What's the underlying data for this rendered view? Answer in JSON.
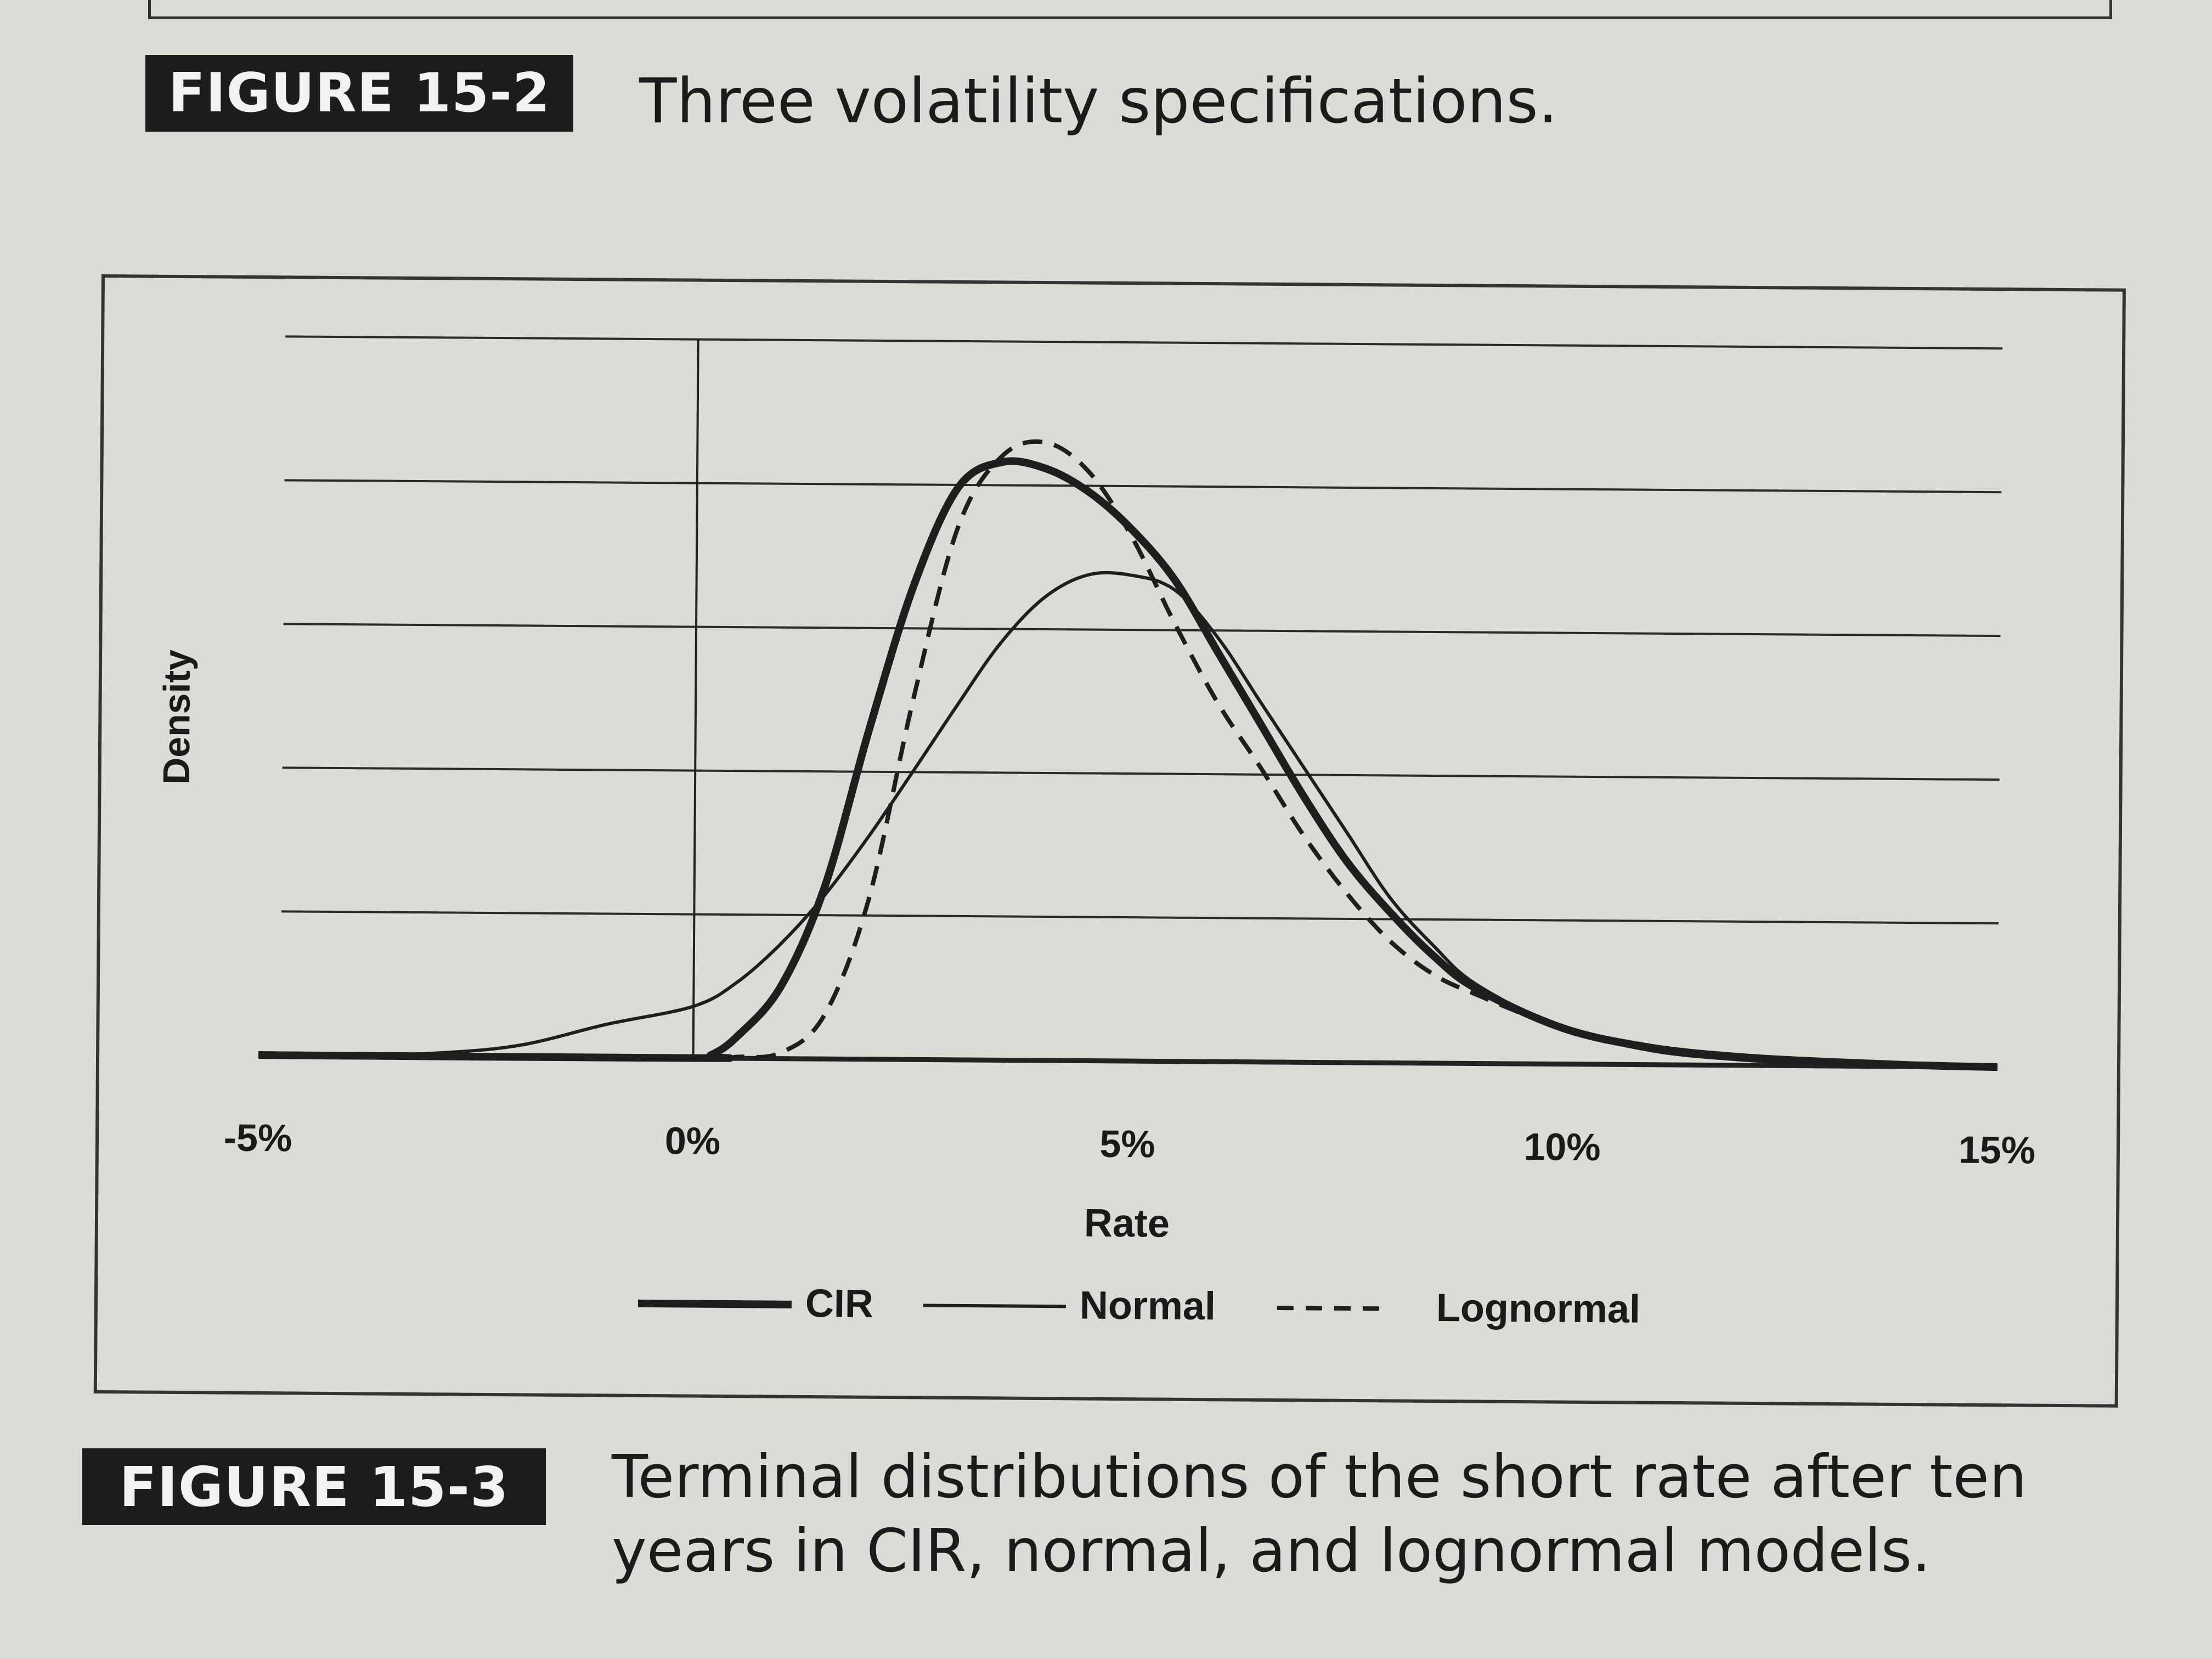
{
  "top_figure": {
    "label": "FIGURE 15-2",
    "caption": "Three volatility specifications."
  },
  "bottom_figure": {
    "label": "FIGURE 15-3",
    "caption_line1": "Terminal distributions of the short rate after ten",
    "caption_line2": "years in CIR, normal, and lognormal models."
  },
  "chart_data": {
    "type": "line",
    "title": "",
    "xlabel": "Rate",
    "ylabel": "Density",
    "xlim": [
      -0.05,
      0.15
    ],
    "ylim": [
      0,
      50
    ],
    "grid": true,
    "x_ticks": [
      "-5%",
      "0%",
      "5%",
      "10%",
      "15%"
    ],
    "x_tick_values": [
      -0.05,
      0.0,
      0.05,
      0.1,
      0.15
    ],
    "legend_position": "bottom",
    "series": [
      {
        "name": "CIR",
        "style": "thick-solid",
        "x": [
          -0.05,
          0.0,
          0.002,
          0.005,
          0.01,
          0.015,
          0.02,
          0.025,
          0.03,
          0.035,
          0.04,
          0.045,
          0.05,
          0.055,
          0.06,
          0.065,
          0.07,
          0.075,
          0.08,
          0.085,
          0.09,
          0.1,
          0.11,
          0.12,
          0.13,
          0.14,
          0.15
        ],
        "values": [
          0,
          0,
          0.2,
          1.5,
          5,
          12,
          23,
          33,
          39.8,
          41.6,
          41.2,
          39.6,
          37,
          33.5,
          28.5,
          23.5,
          18.5,
          14,
          10.5,
          7.5,
          5.2,
          2.5,
          1.2,
          0.6,
          0.3,
          0.1,
          0
        ]
      },
      {
        "name": "Normal",
        "style": "thin-solid",
        "x": [
          -0.05,
          -0.04,
          -0.03,
          -0.02,
          -0.01,
          0.0,
          0.005,
          0.01,
          0.015,
          0.02,
          0.025,
          0.03,
          0.035,
          0.04,
          0.045,
          0.05,
          0.055,
          0.06,
          0.065,
          0.07,
          0.075,
          0.08,
          0.085,
          0.09,
          0.1,
          0.11,
          0.12,
          0.13,
          0.14,
          0.15
        ],
        "values": [
          0,
          0.05,
          0.2,
          0.8,
          2.3,
          3.6,
          5.3,
          8,
          11.4,
          15.5,
          20,
          24.6,
          29,
          32.2,
          33.8,
          33.8,
          32.8,
          29.5,
          25,
          20.5,
          16,
          11.5,
          8.2,
          5.5,
          2.5,
          1,
          0.4,
          0.15,
          0.05,
          0
        ]
      },
      {
        "name": "Lognormal",
        "style": "dashed",
        "x": [
          -0.05,
          0.0,
          0.005,
          0.01,
          0.015,
          0.02,
          0.025,
          0.03,
          0.035,
          0.04,
          0.045,
          0.05,
          0.055,
          0.06,
          0.065,
          0.07,
          0.075,
          0.08,
          0.085,
          0.09,
          0.1,
          0.11,
          0.12,
          0.13,
          0.14,
          0.15
        ],
        "values": [
          0,
          0,
          0.1,
          0.4,
          3,
          11,
          25,
          37,
          42,
          43,
          41,
          36.5,
          30.5,
          25,
          20.5,
          15.8,
          11.8,
          8.5,
          6.2,
          4.8,
          2.5,
          1.3,
          0.6,
          0.3,
          0.1,
          0
        ]
      }
    ]
  }
}
